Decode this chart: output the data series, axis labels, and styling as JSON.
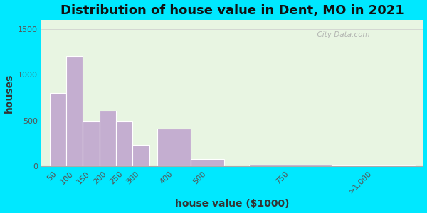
{
  "title": "Distribution of house value in Dent, MO in 2021",
  "xlabel": "house value ($1000)",
  "ylabel": "houses",
  "bar_color": "#c4aed0",
  "bar_edgecolor": "#ffffff",
  "background_outer": "#00e8ff",
  "background_inner": "#e8f5e2",
  "watermark": "  City-Data.com",
  "title_fontsize": 13,
  "axis_label_fontsize": 10,
  "tick_fontsize": 8,
  "bin_lefts": [
    25,
    75,
    125,
    175,
    225,
    275,
    350,
    450,
    625,
    875
  ],
  "bin_widths": [
    50,
    50,
    50,
    50,
    50,
    50,
    100,
    100,
    250,
    250
  ],
  "values": [
    800,
    1200,
    490,
    610,
    490,
    230,
    410,
    75,
    15,
    10
  ],
  "tick_positions": [
    50,
    100,
    150,
    200,
    250,
    300,
    400,
    500,
    750,
    1000
  ],
  "tick_labels": [
    "50",
    "100",
    "150",
    "200",
    "250",
    "300",
    "400",
    "500",
    "750",
    ">1,000"
  ],
  "xlim": [
    0,
    1150
  ],
  "ylim": [
    0,
    1600
  ],
  "yticks": [
    0,
    500,
    1000,
    1500
  ]
}
